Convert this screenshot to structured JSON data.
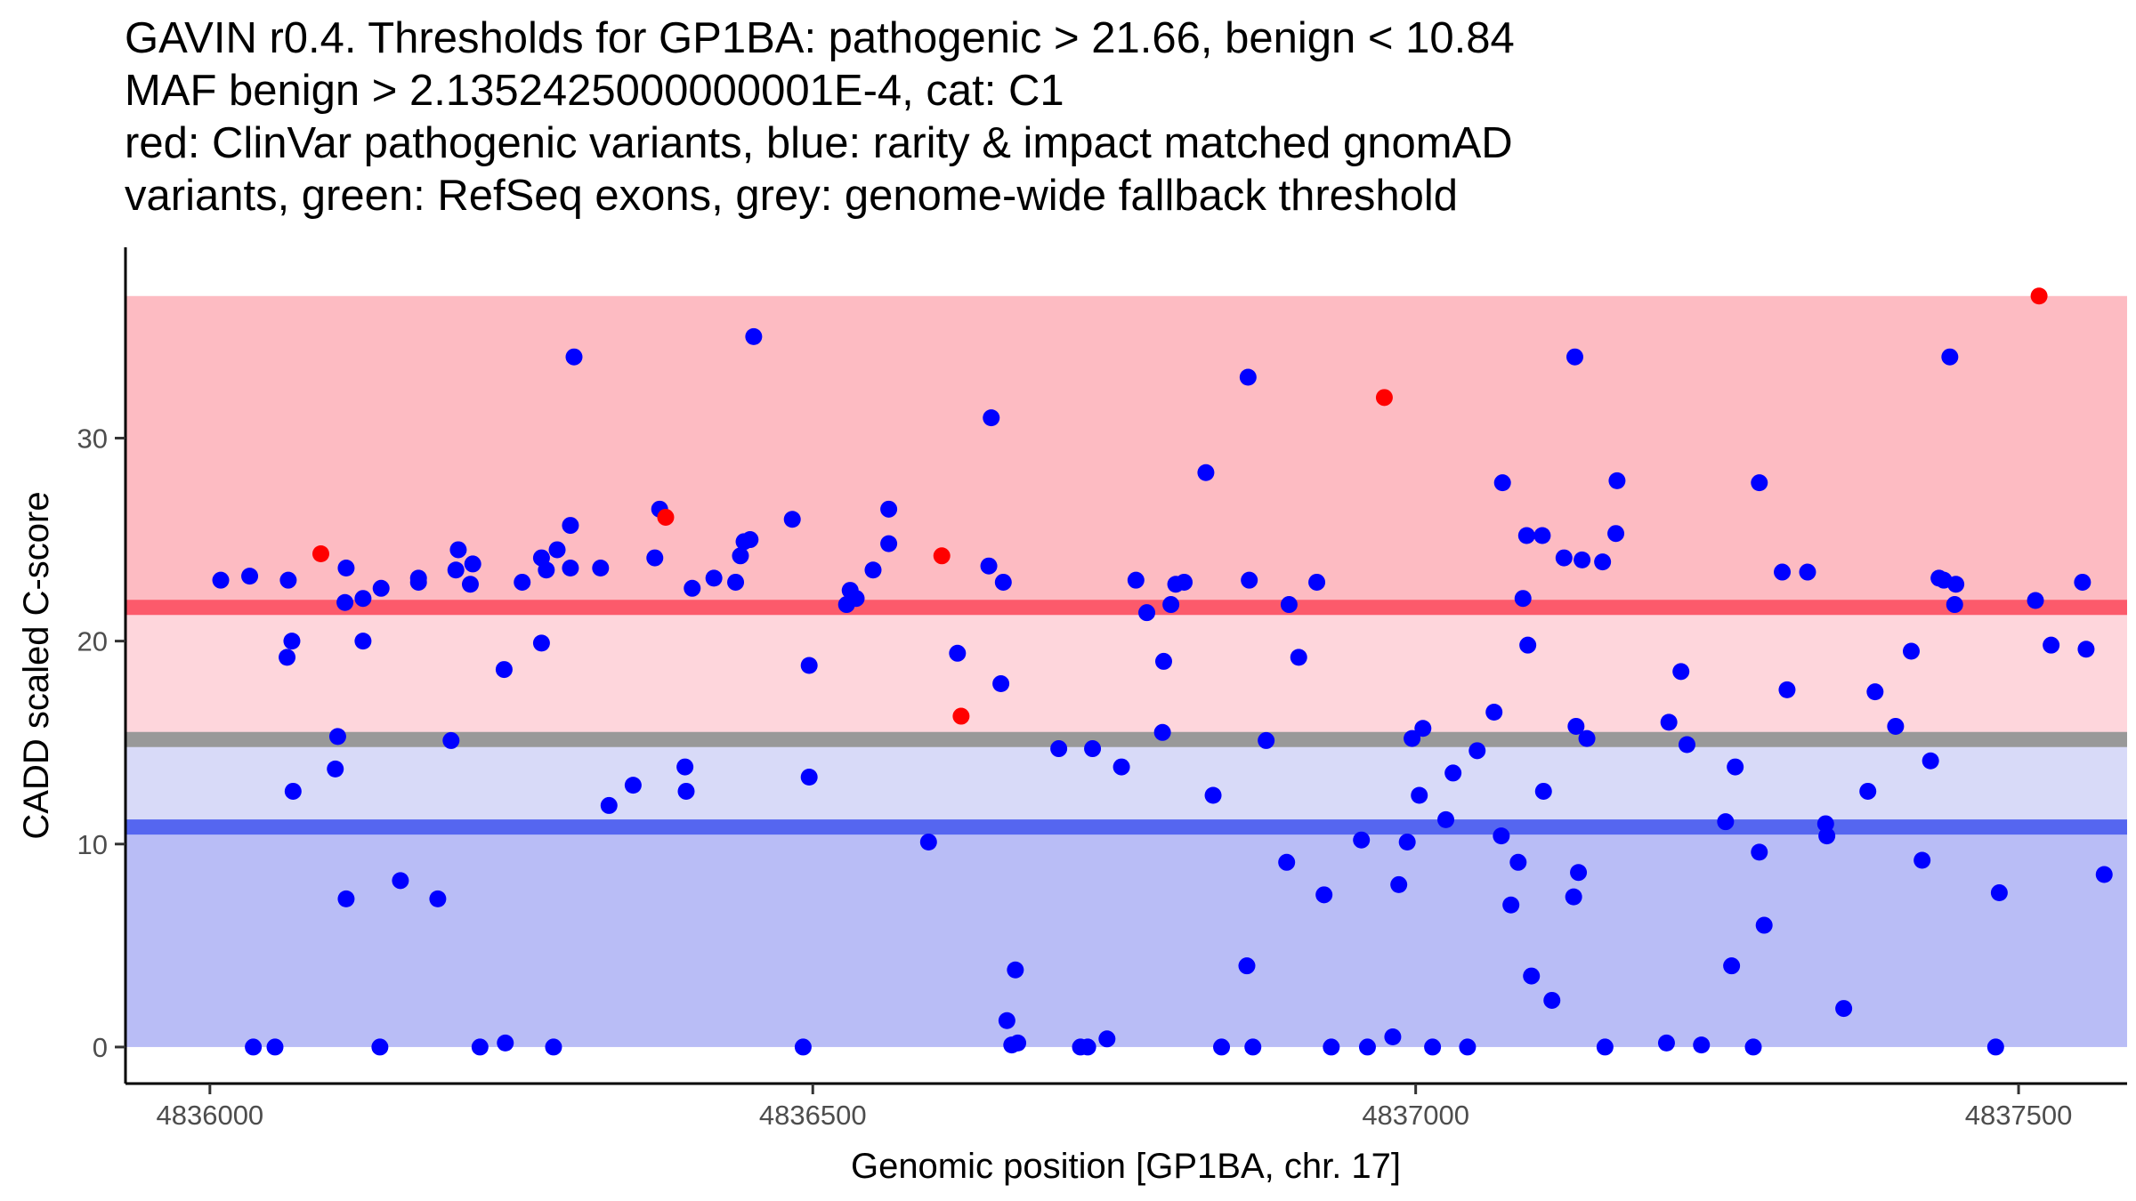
{
  "chart_data": {
    "type": "scatter",
    "title_lines": [
      "GAVIN r0.4. Thresholds for GP1BA: pathogenic > 21.66, benign < 10.84",
      "MAF benign > 2.1352425000000001E-4, cat: C1",
      "red: ClinVar pathogenic variants, blue: rarity & impact matched gnomAD",
      "variants, green: RefSeq exons, grey: genome-wide fallback threshold"
    ],
    "xlabel": "Genomic position [GP1BA, chr. 17]",
    "ylabel": "CADD scaled C-score",
    "xlim": [
      4835930,
      4837590
    ],
    "ylim": [
      -1.8,
      39.4
    ],
    "x_ticks": [
      {
        "value": 4836000,
        "label": "4836000"
      },
      {
        "value": 4836500,
        "label": "4836500"
      },
      {
        "value": 4837000,
        "label": "4837000"
      },
      {
        "value": 4837500,
        "label": "4837500"
      }
    ],
    "y_ticks": [
      {
        "value": 0,
        "label": "0"
      },
      {
        "value": 10,
        "label": "10"
      },
      {
        "value": 20,
        "label": "20"
      },
      {
        "value": 30,
        "label": "30"
      }
    ],
    "bands": [
      {
        "name": "pathogenic-zone",
        "y0": 21.66,
        "y1": 37,
        "color": "#fdbbc2"
      },
      {
        "name": "fallback-zone-upper",
        "y0": 15.15,
        "y1": 21.66,
        "color": "#fed6dc"
      },
      {
        "name": "fallback-zone-lower",
        "y0": 10.84,
        "y1": 15.15,
        "color": "#d8daf8"
      },
      {
        "name": "benign-zone",
        "y0": 0,
        "y1": 10.84,
        "color": "#b9bdf6"
      }
    ],
    "threshold_lines": [
      {
        "name": "pathogenic-threshold",
        "y": 21.66,
        "color": "#fc5a6b"
      },
      {
        "name": "genome-fallback-threshold",
        "y": 15.15,
        "color": "#999999"
      },
      {
        "name": "benign-threshold",
        "y": 10.84,
        "color": "#5566f0"
      }
    ],
    "series": [
      {
        "name": "ClinVar pathogenic",
        "color": "#ff0000",
        "points": [
          {
            "x": 4836092,
            "y": 24.3
          },
          {
            "x": 4836378,
            "y": 26.1
          },
          {
            "x": 4836607,
            "y": 24.2
          },
          {
            "x": 4836623,
            "y": 16.3
          },
          {
            "x": 4836974,
            "y": 32.0
          },
          {
            "x": 4837517,
            "y": 37.0
          }
        ]
      },
      {
        "name": "gnomAD matched",
        "color": "#0000ff",
        "points": [
          {
            "x": 4836009,
            "y": 23.0
          },
          {
            "x": 4836033,
            "y": 23.2
          },
          {
            "x": 4836065,
            "y": 23.0
          },
          {
            "x": 4836064,
            "y": 19.2
          },
          {
            "x": 4836068,
            "y": 20.0
          },
          {
            "x": 4836069,
            "y": 12.6
          },
          {
            "x": 4836036,
            "y": 0.0
          },
          {
            "x": 4836054,
            "y": 0.0
          },
          {
            "x": 4836112,
            "y": 21.9
          },
          {
            "x": 4836113,
            "y": 23.6
          },
          {
            "x": 4836127,
            "y": 22.1
          },
          {
            "x": 4836127,
            "y": 20.0
          },
          {
            "x": 4836104,
            "y": 13.7
          },
          {
            "x": 4836106,
            "y": 15.3
          },
          {
            "x": 4836113,
            "y": 7.3
          },
          {
            "x": 4836142,
            "y": 22.6
          },
          {
            "x": 4836141,
            "y": 0.0
          },
          {
            "x": 4836158,
            "y": 8.2
          },
          {
            "x": 4836173,
            "y": 23.1
          },
          {
            "x": 4836173,
            "y": 22.9
          },
          {
            "x": 4836189,
            "y": 7.3
          },
          {
            "x": 4836200,
            "y": 15.1
          },
          {
            "x": 4836204,
            "y": 23.5
          },
          {
            "x": 4836206,
            "y": 24.5
          },
          {
            "x": 4836216,
            "y": 22.8
          },
          {
            "x": 4836218,
            "y": 23.8
          },
          {
            "x": 4836224,
            "y": 0.0
          },
          {
            "x": 4836244,
            "y": 18.6
          },
          {
            "x": 4836245,
            "y": 0.2
          },
          {
            "x": 4836259,
            "y": 22.9
          },
          {
            "x": 4836275,
            "y": 24.1
          },
          {
            "x": 4836275,
            "y": 19.9
          },
          {
            "x": 4836279,
            "y": 23.5
          },
          {
            "x": 4836288,
            "y": 24.5
          },
          {
            "x": 4836285,
            "y": 0.0
          },
          {
            "x": 4836299,
            "y": 25.7
          },
          {
            "x": 4836299,
            "y": 23.6
          },
          {
            "x": 4836302,
            "y": 34.0
          },
          {
            "x": 4836324,
            "y": 23.6
          },
          {
            "x": 4836331,
            "y": 11.9
          },
          {
            "x": 4836351,
            "y": 12.9
          },
          {
            "x": 4836369,
            "y": 24.1
          },
          {
            "x": 4836373,
            "y": 26.5
          },
          {
            "x": 4836394,
            "y": 13.8
          },
          {
            "x": 4836395,
            "y": 12.6
          },
          {
            "x": 4836400,
            "y": 22.6
          },
          {
            "x": 4836418,
            "y": 23.1
          },
          {
            "x": 4836436,
            "y": 22.9
          },
          {
            "x": 4836440,
            "y": 24.2
          },
          {
            "x": 4836443,
            "y": 24.9
          },
          {
            "x": 4836448,
            "y": 25.0
          },
          {
            "x": 4836451,
            "y": 35.0
          },
          {
            "x": 4836483,
            "y": 26.0
          },
          {
            "x": 4836492,
            "y": 0.0
          },
          {
            "x": 4836497,
            "y": 18.8
          },
          {
            "x": 4836497,
            "y": 13.3
          },
          {
            "x": 4836531,
            "y": 22.5
          },
          {
            "x": 4836528,
            "y": 21.8
          },
          {
            "x": 4836536,
            "y": 22.1
          },
          {
            "x": 4836550,
            "y": 23.5
          },
          {
            "x": 4836563,
            "y": 24.8
          },
          {
            "x": 4836563,
            "y": 26.5
          },
          {
            "x": 4836596,
            "y": 10.1
          },
          {
            "x": 4836620,
            "y": 19.4
          },
          {
            "x": 4836646,
            "y": 23.7
          },
          {
            "x": 4836648,
            "y": 31.0
          },
          {
            "x": 4836658,
            "y": 22.9
          },
          {
            "x": 4836656,
            "y": 17.9
          },
          {
            "x": 4836661,
            "y": 1.3
          },
          {
            "x": 4836665,
            "y": 0.1
          },
          {
            "x": 4836668,
            "y": 3.8
          },
          {
            "x": 4836670,
            "y": 0.2
          },
          {
            "x": 4836704,
            "y": 14.7
          },
          {
            "x": 4836722,
            "y": 0.0
          },
          {
            "x": 4836728,
            "y": 0.0
          },
          {
            "x": 4836732,
            "y": 14.7
          },
          {
            "x": 4836744,
            "y": 0.4
          },
          {
            "x": 4836756,
            "y": 13.8
          },
          {
            "x": 4836768,
            "y": 23.0
          },
          {
            "x": 4836777,
            "y": 21.4
          },
          {
            "x": 4836791,
            "y": 19.0
          },
          {
            "x": 4836790,
            "y": 15.5
          },
          {
            "x": 4836797,
            "y": 21.8
          },
          {
            "x": 4836801,
            "y": 22.8
          },
          {
            "x": 4836808,
            "y": 22.9
          },
          {
            "x": 4836826,
            "y": 28.3
          },
          {
            "x": 4836832,
            "y": 12.4
          },
          {
            "x": 4836839,
            "y": 0.0
          },
          {
            "x": 4836861,
            "y": 33.0
          },
          {
            "x": 4836862,
            "y": 23.0
          },
          {
            "x": 4836860,
            "y": 4.0
          },
          {
            "x": 4836865,
            "y": 0.0
          },
          {
            "x": 4836876,
            "y": 15.1
          },
          {
            "x": 4836893,
            "y": 9.1
          },
          {
            "x": 4836895,
            "y": 21.8
          },
          {
            "x": 4836903,
            "y": 19.2
          },
          {
            "x": 4836918,
            "y": 22.9
          },
          {
            "x": 4836924,
            "y": 7.5
          },
          {
            "x": 4836930,
            "y": 0.0
          },
          {
            "x": 4836955,
            "y": 10.2
          },
          {
            "x": 4836960,
            "y": 0.0
          },
          {
            "x": 4836981,
            "y": 0.5
          },
          {
            "x": 4836986,
            "y": 8.0
          },
          {
            "x": 4836993,
            "y": 10.1
          },
          {
            "x": 4836997,
            "y": 15.2
          },
          {
            "x": 4837003,
            "y": 12.4
          },
          {
            "x": 4837006,
            "y": 15.7
          },
          {
            "x": 4837014,
            "y": 0.0
          },
          {
            "x": 4837025,
            "y": 11.2
          },
          {
            "x": 4837031,
            "y": 13.5
          },
          {
            "x": 4837043,
            "y": 0.0
          },
          {
            "x": 4837051,
            "y": 14.6
          },
          {
            "x": 4837065,
            "y": 16.5
          },
          {
            "x": 4837072,
            "y": 27.8
          },
          {
            "x": 4837071,
            "y": 10.4
          },
          {
            "x": 4837079,
            "y": 7.0
          },
          {
            "x": 4837085,
            "y": 9.1
          },
          {
            "x": 4837089,
            "y": 22.1
          },
          {
            "x": 4837092,
            "y": 25.2
          },
          {
            "x": 4837093,
            "y": 19.8
          },
          {
            "x": 4837096,
            "y": 3.5
          },
          {
            "x": 4837105,
            "y": 25.2
          },
          {
            "x": 4837106,
            "y": 12.6
          },
          {
            "x": 4837113,
            "y": 2.3
          },
          {
            "x": 4837123,
            "y": 24.1
          },
          {
            "x": 4837131,
            "y": 7.4
          },
          {
            "x": 4837133,
            "y": 15.8
          },
          {
            "x": 4837135,
            "y": 8.6
          },
          {
            "x": 4837138,
            "y": 24.0
          },
          {
            "x": 4837142,
            "y": 15.2
          },
          {
            "x": 4837132,
            "y": 34.0
          },
          {
            "x": 4837157,
            "y": 0.0
          },
          {
            "x": 4837155,
            "y": 23.9
          },
          {
            "x": 4837166,
            "y": 25.3
          },
          {
            "x": 4837167,
            "y": 27.9
          },
          {
            "x": 4837208,
            "y": 0.2
          },
          {
            "x": 4837210,
            "y": 16.0
          },
          {
            "x": 4837220,
            "y": 18.5
          },
          {
            "x": 4837225,
            "y": 14.9
          },
          {
            "x": 4837237,
            "y": 0.1
          },
          {
            "x": 4837257,
            "y": 11.1
          },
          {
            "x": 4837262,
            "y": 4.0
          },
          {
            "x": 4837265,
            "y": 13.8
          },
          {
            "x": 4837280,
            "y": 0.0
          },
          {
            "x": 4837285,
            "y": 9.6
          },
          {
            "x": 4837285,
            "y": 27.8
          },
          {
            "x": 4837289,
            "y": 6.0
          },
          {
            "x": 4837304,
            "y": 23.4
          },
          {
            "x": 4837308,
            "y": 17.6
          },
          {
            "x": 4837325,
            "y": 23.4
          },
          {
            "x": 4837340,
            "y": 11.0
          },
          {
            "x": 4837341,
            "y": 10.4
          },
          {
            "x": 4837355,
            "y": 1.9
          },
          {
            "x": 4837375,
            "y": 12.6
          },
          {
            "x": 4837381,
            "y": 17.5
          },
          {
            "x": 4837398,
            "y": 15.8
          },
          {
            "x": 4837411,
            "y": 19.5
          },
          {
            "x": 4837420,
            "y": 9.2
          },
          {
            "x": 4837427,
            "y": 14.1
          },
          {
            "x": 4837434,
            "y": 23.1
          },
          {
            "x": 4837438,
            "y": 23.0
          },
          {
            "x": 4837443,
            "y": 34.0
          },
          {
            "x": 4837448,
            "y": 22.8
          },
          {
            "x": 4837447,
            "y": 21.8
          },
          {
            "x": 4837481,
            "y": 0.0
          },
          {
            "x": 4837484,
            "y": 7.6
          },
          {
            "x": 4837514,
            "y": 22.0
          },
          {
            "x": 4837527,
            "y": 19.8
          },
          {
            "x": 4837553,
            "y": 22.9
          },
          {
            "x": 4837556,
            "y": 19.6
          },
          {
            "x": 4837571,
            "y": 8.5
          }
        ]
      }
    ]
  }
}
